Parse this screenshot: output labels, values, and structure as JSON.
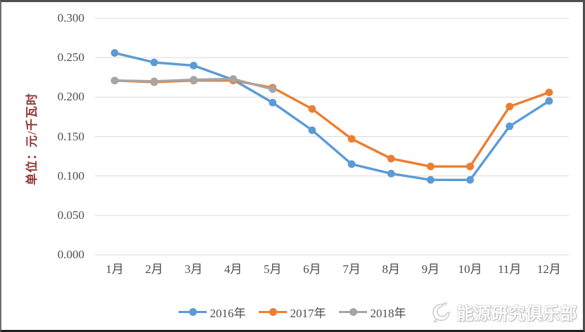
{
  "chart_data": {
    "type": "line",
    "title": "",
    "ylabel": "单位：元/千瓦时",
    "xlabel": "",
    "grid": true,
    "legend_position": "bottom",
    "ylim": [
      0.0,
      0.3
    ],
    "yticks": [
      "0.300",
      "0.250",
      "0.200",
      "0.150",
      "0.100",
      "0.050",
      "0.000"
    ],
    "ytick_values": [
      0.3,
      0.25,
      0.2,
      0.15,
      0.1,
      0.05,
      0.0
    ],
    "categories": [
      "1月",
      "2月",
      "3月",
      "4月",
      "5月",
      "6月",
      "7月",
      "8月",
      "9月",
      "10月",
      "11月",
      "12月"
    ],
    "series": [
      {
        "name": "2016年",
        "color": "#5B9BD5",
        "values": [
          0.256,
          0.244,
          0.24,
          0.222,
          0.193,
          0.158,
          0.115,
          0.103,
          0.095,
          0.095,
          0.163,
          0.195
        ]
      },
      {
        "name": "2017年",
        "color": "#ED7D31",
        "values": [
          0.221,
          0.219,
          0.221,
          0.221,
          0.212,
          0.185,
          0.147,
          0.122,
          0.112,
          0.112,
          0.188,
          0.206
        ]
      },
      {
        "name": "2018年",
        "color": "#A5A5A5",
        "values": [
          0.221,
          0.22,
          0.222,
          0.223,
          0.21,
          null,
          null,
          null,
          null,
          null,
          null,
          null
        ]
      }
    ],
    "gridline_color": "#d9d9d9",
    "tick_color": "#4d4d4d",
    "axis_title_color": "#943634"
  },
  "watermark": {
    "text": "能源研究俱乐部"
  }
}
